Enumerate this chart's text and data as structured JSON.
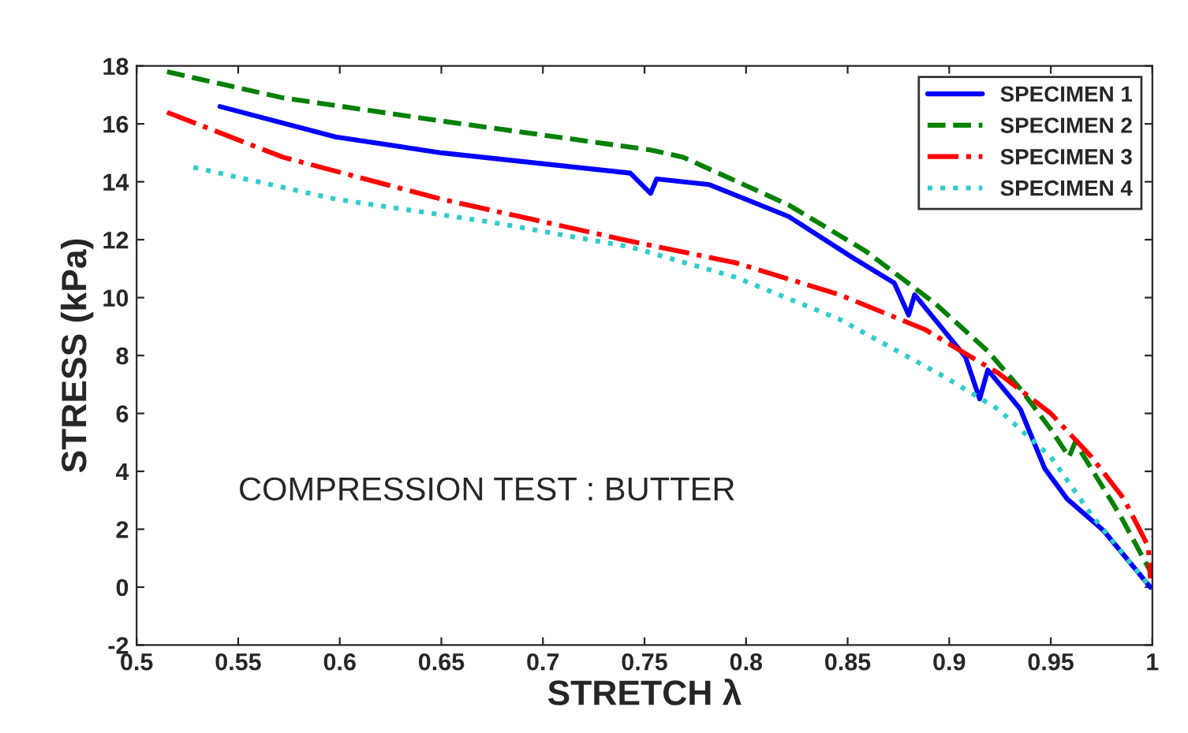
{
  "chart_data": {
    "type": "line",
    "xlabel": "STRETCH λ",
    "ylabel": "STRESS (kPa)",
    "annotations": [
      "COMPRESSION TEST : BUTTER"
    ],
    "xlim": [
      0.5,
      1
    ],
    "xticks": [
      0.5,
      0.55,
      0.6,
      0.65,
      0.7,
      0.75,
      0.8,
      0.85,
      0.9,
      0.95,
      1
    ],
    "ylim": [
      -2,
      18
    ],
    "yticks": [
      -2,
      0,
      2,
      4,
      6,
      8,
      10,
      12,
      14,
      16,
      18
    ],
    "grid": false,
    "legend": "top right",
    "marker": "none",
    "series": [
      {
        "name": "SPECIMEN 1",
        "color": "#0000ff",
        "line_style": "solid",
        "x": [
          0.541,
          0.598,
          0.65,
          0.743,
          0.753,
          0.756,
          0.782,
          0.821,
          0.852,
          0.873,
          0.88,
          0.883,
          0.908,
          0.915,
          0.919,
          0.935,
          0.947,
          0.958,
          0.976,
          0.999
        ],
        "values": [
          16.6,
          15.55,
          15.0,
          14.3,
          13.6,
          14.1,
          13.9,
          12.8,
          11.4,
          10.5,
          9.4,
          10.1,
          7.95,
          6.5,
          7.5,
          6.15,
          4.1,
          3.05,
          1.95,
          0.0
        ]
      },
      {
        "name": "SPECIMEN 2",
        "color": "#008000",
        "line_style": "dashed",
        "x": [
          0.515,
          0.572,
          0.65,
          0.753,
          0.769,
          0.821,
          0.859,
          0.893,
          0.919,
          0.935,
          0.95,
          0.959,
          0.962,
          0.984,
          0.999
        ],
        "values": [
          17.8,
          16.9,
          16.1,
          15.1,
          14.85,
          13.2,
          11.6,
          9.8,
          8.15,
          6.85,
          5.45,
          4.5,
          5.0,
          2.5,
          0.55
        ]
      },
      {
        "name": "SPECIMEN 3",
        "color": "#ff0000",
        "line_style": "dashdot",
        "x": [
          0.515,
          0.572,
          0.65,
          0.743,
          0.795,
          0.846,
          0.888,
          0.924,
          0.95,
          0.97,
          0.986,
          0.998,
          0.999
        ],
        "values": [
          16.4,
          14.85,
          13.4,
          11.95,
          11.2,
          10.1,
          8.9,
          7.4,
          6.0,
          4.5,
          3.05,
          1.4,
          0.3
        ]
      },
      {
        "name": "SPECIMEN 4",
        "color": "#33cccc",
        "line_style": "dotted",
        "x": [
          0.528,
          0.598,
          0.675,
          0.743,
          0.795,
          0.846,
          0.898,
          0.924,
          0.95,
          0.97,
          0.999
        ],
        "values": [
          14.5,
          13.4,
          12.6,
          11.75,
          10.7,
          9.25,
          7.25,
          6.15,
          4.5,
          2.5,
          0.0
        ]
      }
    ]
  }
}
